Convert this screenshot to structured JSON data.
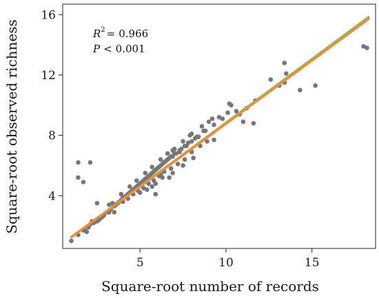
{
  "chart_data": {
    "type": "scatter",
    "xlabel": "Square-root number of records",
    "ylabel": "Square-root observed richness",
    "xlim": [
      0.5,
      18.7
    ],
    "ylim": [
      0.5,
      16.7
    ],
    "x_ticks": [
      5,
      10,
      15
    ],
    "y_ticks": [
      4,
      8,
      12,
      16
    ],
    "grid": false,
    "point_color": "#777777",
    "annotations": {
      "r2_label": "R",
      "r2_superscript": "2",
      "r2_equals": "=",
      "r2_value": "0.966",
      "p_label": "P",
      "p_comparator": "<",
      "p_value": "0.001"
    },
    "fit_lines": [
      {
        "color": "#78c35a",
        "x": [
          1.0,
          18.3
        ],
        "y": [
          1.25,
          15.85
        ]
      },
      {
        "color": "#f08c3c",
        "x": [
          1.0,
          18.3
        ],
        "y": [
          1.25,
          15.72
        ]
      }
    ],
    "points": [
      [
        1.0,
        1.0
      ],
      [
        1.4,
        1.4
      ],
      [
        1.7,
        1.7
      ],
      [
        2.0,
        1.9
      ],
      [
        2.3,
        2.2
      ],
      [
        2.6,
        2.4
      ],
      [
        2.9,
        2.7
      ],
      [
        3.1,
        2.9
      ],
      [
        3.3,
        3.1
      ],
      [
        3.5,
        3.3
      ],
      [
        3.7,
        3.5
      ],
      [
        3.9,
        3.7
      ],
      [
        4.0,
        3.9
      ],
      [
        4.2,
        4.0
      ],
      [
        4.4,
        4.2
      ],
      [
        4.6,
        4.4
      ],
      [
        4.8,
        4.6
      ],
      [
        5.0,
        4.8
      ],
      [
        5.2,
        5.0
      ],
      [
        5.4,
        5.2
      ],
      [
        5.6,
        5.4
      ],
      [
        5.8,
        5.6
      ],
      [
        6.0,
        5.8
      ],
      [
        6.2,
        6.0
      ],
      [
        6.4,
        6.2
      ],
      [
        6.6,
        6.4
      ],
      [
        6.8,
        6.6
      ],
      [
        7.0,
        6.8
      ],
      [
        7.3,
        7.0
      ],
      [
        7.6,
        7.3
      ],
      [
        8.0,
        7.6
      ],
      [
        8.4,
        7.9
      ],
      [
        8.8,
        8.3
      ],
      [
        9.3,
        8.7
      ],
      [
        9.8,
        9.1
      ],
      [
        3.6,
        3.4
      ],
      [
        3.8,
        3.6
      ],
      [
        4.1,
        3.9
      ],
      [
        4.3,
        4.1
      ],
      [
        4.5,
        4.3
      ],
      [
        4.7,
        4.5
      ],
      [
        4.9,
        4.7
      ],
      [
        5.1,
        4.9
      ],
      [
        5.3,
        5.1
      ],
      [
        5.5,
        5.3
      ],
      [
        5.7,
        5.5
      ],
      [
        5.9,
        5.7
      ],
      [
        6.1,
        5.9
      ],
      [
        6.3,
        6.1
      ],
      [
        6.5,
        6.3
      ],
      [
        6.7,
        6.5
      ],
      [
        6.9,
        6.6
      ],
      [
        7.1,
        6.8
      ],
      [
        7.4,
        7.1
      ],
      [
        7.8,
        7.5
      ],
      [
        8.2,
        7.8
      ],
      [
        4.0,
        3.6
      ],
      [
        4.3,
        3.8
      ],
      [
        4.6,
        4.1
      ],
      [
        4.9,
        4.3
      ],
      [
        5.2,
        4.5
      ],
      [
        5.5,
        4.8
      ],
      [
        5.8,
        5.0
      ],
      [
        6.1,
        5.3
      ],
      [
        6.4,
        5.6
      ],
      [
        6.8,
        5.8
      ],
      [
        7.2,
        6.1
      ],
      [
        7.6,
        6.4
      ],
      [
        8.0,
        6.9
      ],
      [
        8.5,
        7.3
      ],
      [
        5.0,
        4.2
      ],
      [
        5.4,
        4.4
      ],
      [
        5.9,
        4.8
      ],
      [
        6.3,
        5.2
      ],
      [
        6.9,
        5.5
      ],
      [
        7.5,
        6.0
      ],
      [
        8.1,
        6.5
      ],
      [
        3.4,
        3.5
      ],
      [
        3.9,
        4.1
      ],
      [
        4.4,
        4.6
      ],
      [
        4.8,
        5.0
      ],
      [
        5.3,
        5.5
      ],
      [
        5.7,
        5.9
      ],
      [
        6.2,
        6.4
      ],
      [
        6.6,
        6.8
      ],
      [
        7.0,
        7.1
      ],
      [
        7.5,
        7.6
      ],
      [
        8.0,
        8.1
      ],
      [
        8.6,
        8.6
      ],
      [
        9.2,
        9.1
      ],
      [
        10.1,
        9.5
      ],
      [
        10.6,
        9.6
      ],
      [
        10.8,
        9.4
      ],
      [
        11.2,
        9.8
      ],
      [
        11.7,
        10.3
      ],
      [
        12.6,
        11.7
      ],
      [
        13.1,
        11.3
      ],
      [
        13.5,
        12.1
      ],
      [
        13.4,
        12.8
      ],
      [
        13.4,
        11.5
      ],
      [
        14.3,
        11.0
      ],
      [
        15.2,
        11.3
      ],
      [
        11.0,
        8.9
      ],
      [
        11.6,
        8.8
      ],
      [
        10.3,
        10.0
      ],
      [
        10.2,
        10.1
      ],
      [
        9.6,
        9.2
      ],
      [
        9.0,
        8.9
      ],
      [
        8.7,
        8.3
      ],
      [
        8.3,
        7.9
      ],
      [
        7.7,
        7.3
      ],
      [
        7.3,
        6.9
      ],
      [
        6.9,
        7.0
      ],
      [
        7.9,
        8.0
      ],
      [
        8.9,
        7.6
      ],
      [
        9.3,
        7.7
      ],
      [
        6.7,
        5.2
      ],
      [
        6.2,
        5.4
      ],
      [
        5.7,
        4.6
      ],
      [
        5.9,
        4.1
      ],
      [
        3.5,
        2.9
      ],
      [
        3.2,
        2.9
      ],
      [
        2.8,
        2.6
      ],
      [
        2.5,
        2.3
      ],
      [
        2.1,
        2.1
      ],
      [
        1.8,
        1.7
      ],
      [
        1.9,
        1.6
      ],
      [
        2.2,
        2.3
      ],
      [
        2.7,
        2.5
      ],
      [
        2.1,
        6.2
      ],
      [
        1.4,
        6.2
      ],
      [
        1.4,
        5.2
      ],
      [
        1.7,
        4.9
      ],
      [
        2.5,
        3.5
      ],
      [
        3.2,
        3.4
      ],
      [
        18.0,
        13.9
      ],
      [
        18.2,
        13.8
      ]
    ]
  }
}
